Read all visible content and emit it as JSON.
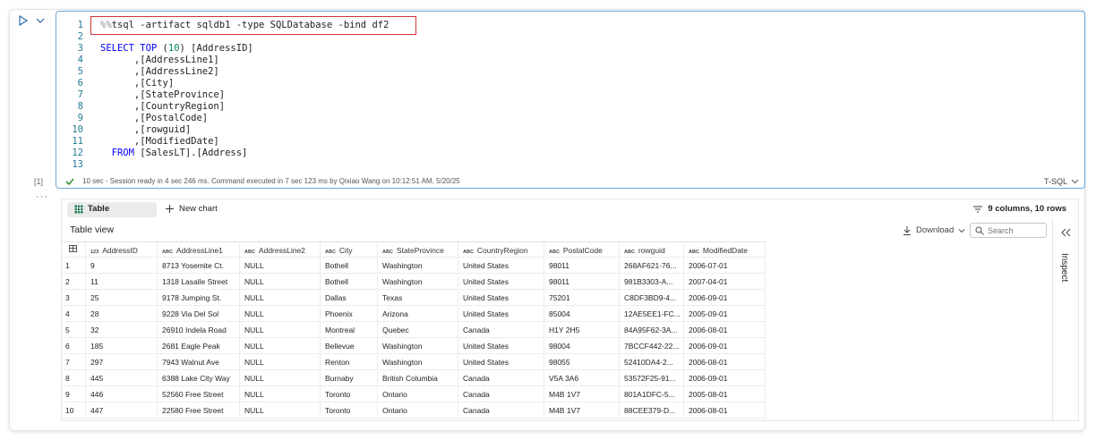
{
  "cell": {
    "execution_count": "[1]",
    "lines": [
      {
        "number": 1,
        "tokens": [
          {
            "text": "%%",
            "color": "#8a8a8a"
          },
          {
            "text": "tsql -artifact sqldb1 -type SQLDatabase -bind df2",
            "color": "#222222"
          }
        ]
      },
      {
        "number": 2
      },
      {
        "number": 3,
        "tokens": [
          {
            "text": "SELECT TOP",
            "color": "#0000ff"
          },
          {
            "text": " (",
            "color": "#222222"
          },
          {
            "text": "10",
            "color": "#098658"
          },
          {
            "text": ") [AddressID]",
            "color": "#222222"
          }
        ]
      },
      {
        "number": 4,
        "tokens": [
          {
            "text": "      ,[AddressLine1]",
            "color": "#222222"
          }
        ]
      },
      {
        "number": 5,
        "tokens": [
          {
            "text": "      ,[AddressLine2]",
            "color": "#222222"
          }
        ]
      },
      {
        "number": 6,
        "tokens": [
          {
            "text": "      ,[City]",
            "color": "#222222"
          }
        ]
      },
      {
        "number": 7,
        "tokens": [
          {
            "text": "      ,[StateProvince]",
            "color": "#222222"
          }
        ]
      },
      {
        "number": 8,
        "tokens": [
          {
            "text": "      ,[CountryRegion]",
            "color": "#222222"
          }
        ]
      },
      {
        "number": 9,
        "tokens": [
          {
            "text": "      ,[PostalCode]",
            "color": "#222222"
          }
        ]
      },
      {
        "number": 10,
        "tokens": [
          {
            "text": "      ,[rowguid]",
            "color": "#222222"
          }
        ]
      },
      {
        "number": 11,
        "tokens": [
          {
            "text": "      ,[ModifiedDate]",
            "color": "#222222"
          }
        ]
      },
      {
        "number": 12,
        "tokens": [
          {
            "text": "  FROM",
            "color": "#0000ff"
          },
          {
            "text": " [SalesLT].[Address]",
            "color": "#222222"
          }
        ]
      },
      {
        "number": 13
      }
    ],
    "status": "10 sec - Session ready in 4 sec 246 ms. Command executed in 7 sec 123 ms by Qixiao Wang on 10:12:51 AM, 5/20/25",
    "language": "T-SQL"
  },
  "output": {
    "tabs": [
      "Table",
      "New chart"
    ],
    "summary": "9 columns, 10 rows",
    "view_title": "Table view",
    "download": "Download",
    "search_placeholder": "Search",
    "side_panel": "Inspect",
    "table": {
      "columns": [
        {
          "type": "123",
          "name": "AddressID"
        },
        {
          "type": "ABC",
          "name": "AddressLine1"
        },
        {
          "type": "ABC",
          "name": "AddressLine2"
        },
        {
          "type": "ABC",
          "name": "City"
        },
        {
          "type": "ABC",
          "name": "StateProvince"
        },
        {
          "type": "ABC",
          "name": "CountryRegion"
        },
        {
          "type": "ABC",
          "name": "PostalCode"
        },
        {
          "type": "ABC",
          "name": "rowguid"
        },
        {
          "type": "ABC",
          "name": "ModifiedDate"
        }
      ],
      "rows": [
        [
          1,
          9,
          "8713 Yosemite Ct.",
          "NULL",
          "Bothell",
          "Washington",
          "United States",
          "98011",
          "268AF621-76...",
          "2006-07-01"
        ],
        [
          2,
          11,
          "1318 Lasalle Street",
          "NULL",
          "Bothell",
          "Washington",
          "United States",
          "98011",
          "981B3303-A...",
          "2007-04-01"
        ],
        [
          3,
          25,
          "9178 Jumping St.",
          "NULL",
          "Dallas",
          "Texas",
          "United States",
          "75201",
          "C8DF3BD9-4...",
          "2006-09-01"
        ],
        [
          4,
          28,
          "9228 Via Del Sol",
          "NULL",
          "Phoenix",
          "Arizona",
          "United States",
          "85004",
          "12AE5EE1-FC...",
          "2005-09-01"
        ],
        [
          5,
          32,
          "26910 Indela Road",
          "NULL",
          "Montreal",
          "Quebec",
          "Canada",
          "H1Y 2H5",
          "84A95F62-3A...",
          "2006-08-01"
        ],
        [
          6,
          185,
          "2681 Eagle Peak",
          "NULL",
          "Bellevue",
          "Washington",
          "United States",
          "98004",
          "7BCCF442-22...",
          "2006-09-01"
        ],
        [
          7,
          297,
          "7943 Walnut Ave",
          "NULL",
          "Renton",
          "Washington",
          "United States",
          "98055",
          "52410DA4-2...",
          "2006-08-01"
        ],
        [
          8,
          445,
          "6388 Lake City Way",
          "NULL",
          "Burnaby",
          "British Columbia",
          "Canada",
          "V5A 3A6",
          "53572F25-91...",
          "2006-09-01"
        ],
        [
          9,
          446,
          "52560 Free Street",
          "NULL",
          "Toronto",
          "Ontario",
          "Canada",
          "M4B 1V7",
          "801A1DFC-5...",
          "2005-08-01"
        ],
        [
          10,
          447,
          "22580 Free Street",
          "NULL",
          "Toronto",
          "Ontario",
          "Canada",
          "M4B 1V7",
          "88CEE379-D...",
          "2006-08-01"
        ]
      ]
    }
  }
}
